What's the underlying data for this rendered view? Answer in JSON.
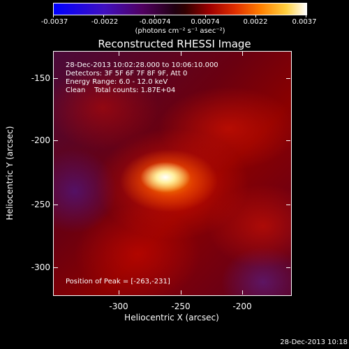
{
  "colorbar": {
    "ticks": [
      "-0.0037",
      "-0.0022",
      "-0.00074",
      "0.00074",
      "0.0022",
      "0.0037"
    ],
    "unit": "(photons cm⁻² s⁻¹ asec⁻²)"
  },
  "plot": {
    "title": "Reconstructed RHESSI Image",
    "info_lines": [
      "28-Dec-2013 10:02:28.000 to 10:06:10.000",
      "Detectors: 3F 5F 6F 7F 8F 9F, Att 0",
      "Energy Range: 6.0 - 12.0 keV",
      "Clean    Total counts: 1.87E+04"
    ],
    "peak": "Position of Peak = [-263,-231]",
    "x_ticks": [
      "-300",
      "-250",
      "-200"
    ],
    "y_ticks": [
      "-150",
      "-200",
      "-250",
      "-300"
    ],
    "x_title": "Heliocentric X (arcsec)",
    "y_title": "Heliocentric Y (arcsec)"
  },
  "footer": {
    "timestamp": "28-Dec-2013 10:18"
  }
}
